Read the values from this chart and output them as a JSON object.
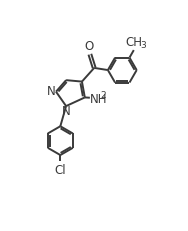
{
  "bg_color": "#ffffff",
  "line_color": "#3a3a3a",
  "line_width": 1.4,
  "font_size": 8.5,
  "sub_font_size": 6.5,
  "figsize": [
    1.88,
    2.32
  ],
  "dpi": 100,
  "xlim": [
    0,
    10
  ],
  "ylim": [
    0,
    12.4
  ]
}
